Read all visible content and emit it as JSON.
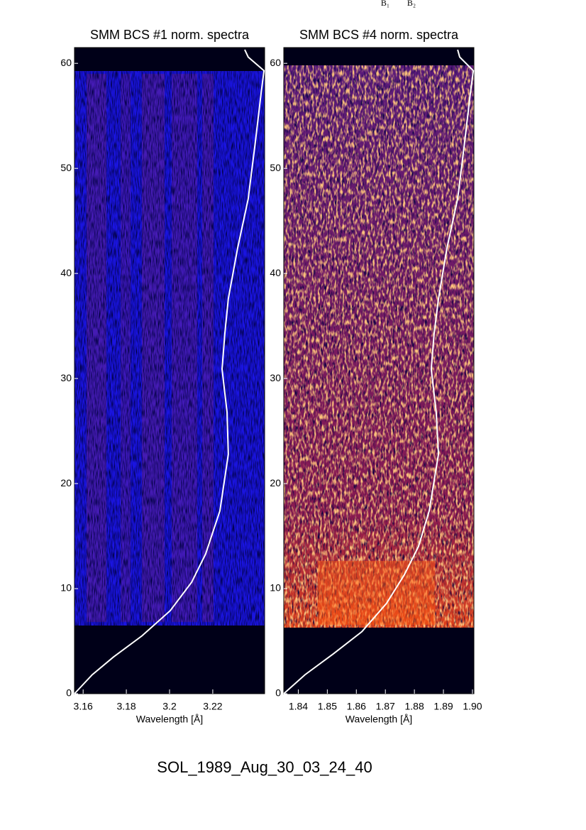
{
  "top_labels": [
    "B₁",
    "B₂"
  ],
  "footer": "SOL_1989_Aug_30_03_24_40",
  "chart_data": [
    {
      "type": "line",
      "title": "SMM BCS #1 norm. spectra",
      "x_label": "Wavelength [Å]",
      "xlim": [
        3.156,
        3.244
      ],
      "xticks": [
        3.16,
        3.18,
        3.2,
        3.22
      ],
      "ylim": [
        0,
        61.5
      ],
      "yticks": [
        0,
        10,
        20,
        30,
        40,
        50,
        60
      ],
      "series": [
        {
          "color": "#ffffff",
          "x": [
            3.156,
            3.1642,
            3.1741,
            3.1872,
            3.2003,
            3.2102,
            3.2167,
            3.2233,
            3.2272,
            3.2266,
            3.2243,
            3.2256,
            3.2272,
            3.2315,
            3.2364,
            3.2397,
            3.2424,
            3.2437,
            3.2364,
            3.2348
          ],
          "values": [
            0,
            1.8,
            3.5,
            5.5,
            7.9,
            10.6,
            13.3,
            17.4,
            22.8,
            26.8,
            30.9,
            34.3,
            37.6,
            42.4,
            47.1,
            52.5,
            57.2,
            59.3,
            60.6,
            61.3
          ]
        }
      ]
    },
    {
      "type": "line",
      "title": "SMM BCS #4 norm. spectra",
      "x_label": "Wavelength [Å]",
      "xlim": [
        1.835,
        1.9005
      ],
      "xticks": [
        1.84,
        1.85,
        1.86,
        1.87,
        1.88,
        1.89,
        {
          "value": 1.9,
          "label": "1.90"
        }
      ],
      "ylim": [
        0,
        61.5
      ],
      "yticks": [
        0,
        10,
        20,
        30,
        40,
        50,
        60
      ],
      "series": [
        {
          "color": "#ffffff",
          "x": [
            1.835,
            1.8423,
            1.8521,
            1.8619,
            1.8704,
            1.8765,
            1.8814,
            1.8851,
            1.8883,
            1.8875,
            1.8858,
            1.8868,
            1.8883,
            1.8912,
            1.8949,
            1.8973,
            1.8993,
            1.9003,
            1.8956,
            1.8949
          ],
          "values": [
            0,
            1.8,
            3.8,
            5.9,
            8.6,
            11.3,
            14.0,
            17.4,
            22.8,
            26.8,
            30.9,
            34.3,
            37.6,
            42.4,
            47.1,
            52.5,
            57.2,
            59.3,
            60.6,
            61.3
          ]
        }
      ]
    }
  ]
}
